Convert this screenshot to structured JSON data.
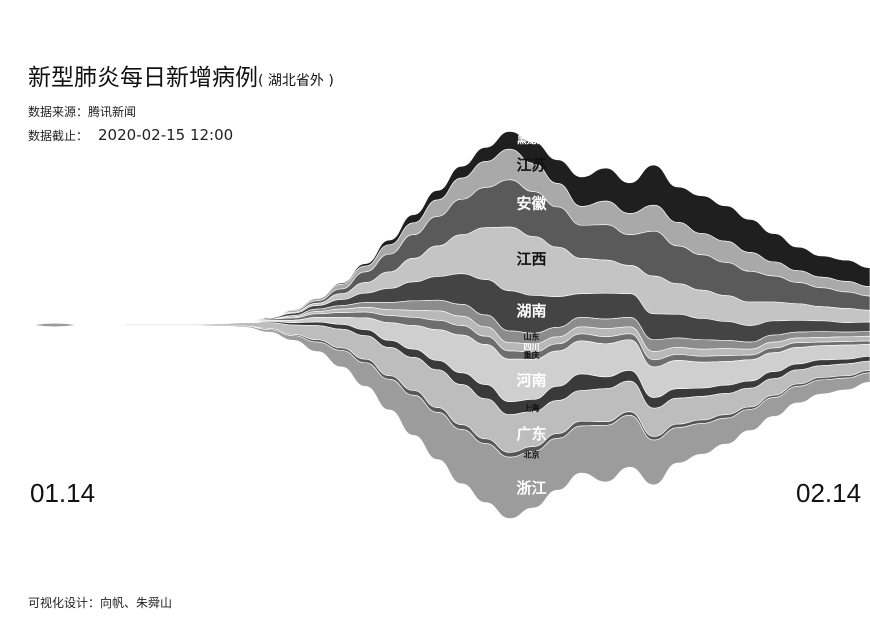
{
  "title": "新型肺炎每日新增病例",
  "subtitle": "( 湖北省外 )",
  "source": {
    "label": "数据来源：",
    "value": "腾讯新闻"
  },
  "cutoff": {
    "label": "数据截止：",
    "value": "2020-02-15 12:00"
  },
  "x_start_label": "01.14",
  "x_end_label": "02.14",
  "credit": "可视化设计：向帆、朱舜山",
  "chart_data": {
    "type": "area",
    "layout": "streamgraph",
    "x": [
      "01.14",
      "01.15",
      "01.16",
      "01.17",
      "01.18",
      "01.19",
      "01.20",
      "01.21",
      "01.22",
      "01.23",
      "01.24",
      "01.25",
      "01.26",
      "01.27",
      "01.28",
      "01.29",
      "01.30",
      "01.31",
      "02.01",
      "02.02",
      "02.03",
      "02.04",
      "02.05",
      "02.06",
      "02.07",
      "02.08",
      "02.09",
      "02.10",
      "02.11",
      "02.12",
      "02.13",
      "02.14"
    ],
    "series": [
      {
        "name": "黑龙江",
        "values": [
          0,
          0,
          0,
          0,
          0,
          0,
          0,
          0,
          0,
          1,
          2,
          4,
          7,
          8,
          10,
          12,
          15,
          18,
          20,
          25,
          28,
          26,
          34,
          30,
          32,
          30,
          28,
          24,
          20,
          18,
          18,
          16
        ]
      },
      {
        "name": "江苏",
        "values": [
          0,
          0,
          0,
          0,
          0,
          0,
          0,
          1,
          2,
          4,
          5,
          8,
          10,
          14,
          18,
          22,
          26,
          24,
          20,
          16,
          20,
          18,
          22,
          20,
          18,
          18,
          16,
          12,
          10,
          9,
          9,
          8
        ]
      },
      {
        "name": "安徽",
        "values": [
          0,
          0,
          0,
          0,
          0,
          0,
          0,
          1,
          2,
          4,
          9,
          15,
          20,
          25,
          30,
          34,
          40,
          38,
          34,
          28,
          30,
          26,
          38,
          32,
          30,
          28,
          26,
          22,
          18,
          16,
          14,
          12
        ]
      },
      {
        "name": "江西",
        "values": [
          0,
          0,
          0,
          0,
          0,
          0,
          0,
          1,
          2,
          5,
          9,
          14,
          20,
          26,
          33,
          44,
          54,
          50,
          42,
          30,
          28,
          24,
          32,
          26,
          24,
          22,
          20,
          16,
          14,
          12,
          12,
          10
        ]
      },
      {
        "name": "湖南",
        "values": [
          0,
          0,
          0,
          0,
          0,
          0,
          1,
          2,
          3,
          5,
          8,
          12,
          16,
          20,
          26,
          30,
          34,
          32,
          26,
          20,
          22,
          20,
          22,
          20,
          18,
          16,
          14,
          12,
          10,
          9,
          8,
          8
        ]
      },
      {
        "name": "山东",
        "values": [
          0,
          0,
          0,
          0,
          0,
          0,
          0,
          1,
          2,
          3,
          4,
          6,
          8,
          9,
          10,
          10,
          10,
          9,
          8,
          8,
          8,
          8,
          10,
          8,
          8,
          7,
          6,
          6,
          5,
          5,
          4,
          4
        ]
      },
      {
        "name": "四川",
        "values": [
          0,
          0,
          0,
          0,
          0,
          0,
          0,
          1,
          2,
          3,
          4,
          5,
          6,
          8,
          8,
          8,
          7,
          7,
          6,
          6,
          7,
          6,
          7,
          6,
          6,
          6,
          5,
          5,
          4,
          4,
          4,
          4
        ]
      },
      {
        "name": "重庆",
        "values": [
          0,
          0,
          0,
          0,
          0,
          0,
          1,
          2,
          3,
          4,
          5,
          6,
          7,
          8,
          8,
          7,
          7,
          6,
          6,
          6,
          6,
          5,
          6,
          5,
          5,
          5,
          4,
          4,
          4,
          3,
          3,
          3
        ]
      },
      {
        "name": "河南",
        "values": [
          0,
          0,
          0,
          0,
          0,
          0,
          1,
          2,
          4,
          6,
          10,
          15,
          20,
          26,
          32,
          34,
          36,
          34,
          30,
          28,
          28,
          26,
          26,
          24,
          22,
          20,
          18,
          16,
          14,
          12,
          12,
          10
        ]
      },
      {
        "name": "上海",
        "values": [
          0,
          0,
          0,
          0,
          0,
          0,
          1,
          2,
          3,
          4,
          5,
          6,
          7,
          8,
          10,
          12,
          11,
          10,
          12,
          14,
          10,
          9,
          9,
          8,
          7,
          7,
          6,
          6,
          5,
          5,
          4,
          4
        ]
      },
      {
        "name": "广东",
        "values": [
          1,
          1,
          1,
          1,
          2,
          3,
          5,
          8,
          12,
          16,
          20,
          24,
          28,
          32,
          34,
          34,
          32,
          30,
          28,
          26,
          28,
          26,
          24,
          22,
          20,
          18,
          16,
          14,
          12,
          10,
          10,
          8
        ]
      },
      {
        "name": "北京",
        "values": [
          0,
          0,
          0,
          0,
          0,
          0,
          1,
          1,
          2,
          2,
          3,
          3,
          4,
          4,
          4,
          4,
          4,
          4,
          4,
          4,
          3,
          3,
          3,
          3,
          3,
          3,
          2,
          2,
          2,
          2,
          2,
          2
        ]
      },
      {
        "name": "浙江",
        "values": [
          0,
          0,
          0,
          0,
          0,
          1,
          2,
          4,
          8,
          14,
          20,
          26,
          34,
          40,
          46,
          50,
          52,
          48,
          44,
          40,
          48,
          44,
          38,
          30,
          26,
          22,
          18,
          16,
          14,
          12,
          10,
          8
        ]
      }
    ],
    "colors": [
      "#1f1f1f",
      "#a9a9a9",
      "#5a5a5a",
      "#c4c4c4",
      "#444444",
      "#8c8c8c",
      "#b8b8b8",
      "#6e6e6e",
      "#cfcfcf",
      "#3a3a3a",
      "#bdbdbd",
      "#575757",
      "#9c9c9c"
    ],
    "labels_on_chart": true
  }
}
